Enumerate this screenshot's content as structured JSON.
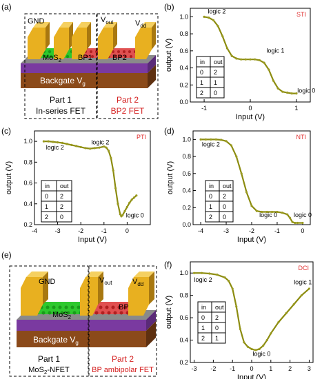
{
  "panels": {
    "a": {
      "tag": "(a)",
      "labels": {
        "gnd": "GND",
        "vout_main": "V",
        "vout_sub": "out",
        "vdd_main": "V",
        "vdd_sub": "dd",
        "mos2_main": "MoS",
        "mos2_sub": "2",
        "bp1": "BP1",
        "bp2": "BP2",
        "backgate_main": "Backgate V",
        "backgate_sub": "g"
      },
      "part1": {
        "title": "Part 1",
        "subtitle": "In-series FET"
      },
      "part2": {
        "title": "Part 2",
        "subtitle": "BP2 FET"
      }
    },
    "e": {
      "tag": "(e)",
      "labels": {
        "gnd": "GND",
        "vout_main": "V",
        "vout_sub": "out",
        "vdd_main": "V",
        "vdd_sub": "dd",
        "mos2_main": "MoS",
        "mos2_sub": "2",
        "bp": "BP",
        "backgate_main": "Backgate V",
        "backgate_sub": "g"
      },
      "part1": {
        "title": "Part 1",
        "subtitle_main": "MoS",
        "subtitle_sub": "2",
        "subtitle_rest": "-NFET"
      },
      "part2": {
        "title": "Part 2",
        "subtitle": "BP ambipolar FET"
      }
    }
  },
  "chart_data": [
    {
      "id": "b",
      "tag": "(b)",
      "type": "line",
      "name_label": "STI",
      "xlabel": "Input (V)",
      "ylabel": "output (V)",
      "xlim": [
        -1.3,
        1.3
      ],
      "ylim": [
        0.0,
        1.1
      ],
      "xticks": [
        -1,
        0,
        1
      ],
      "yticks": [
        0.0,
        0.2,
        0.4,
        0.6,
        0.8,
        1.0
      ],
      "series": [
        {
          "x": [
            -1.0,
            -0.9,
            -0.8,
            -0.7,
            -0.6,
            -0.5,
            -0.4,
            -0.3,
            -0.2,
            -0.1,
            0.0,
            0.1,
            0.2,
            0.3,
            0.4,
            0.5,
            0.6,
            0.7,
            0.8,
            0.9,
            1.0
          ],
          "y": [
            1.0,
            0.99,
            0.96,
            0.89,
            0.77,
            0.63,
            0.54,
            0.51,
            0.5,
            0.5,
            0.5,
            0.5,
            0.49,
            0.46,
            0.38,
            0.25,
            0.16,
            0.12,
            0.11,
            0.1,
            0.1
          ]
        }
      ],
      "annotations": [
        {
          "text": "logic 2",
          "x": -0.92,
          "y": 1.04
        },
        {
          "text": "logic 1",
          "x": 0.35,
          "y": 0.58
        },
        {
          "text": "logic 0",
          "x": 1.02,
          "y": 0.11
        }
      ],
      "truth_table": {
        "headers": [
          "in",
          "out"
        ],
        "rows": [
          [
            "0",
            "2"
          ],
          [
            "1",
            "1"
          ],
          [
            "2",
            "0"
          ]
        ]
      }
    },
    {
      "id": "c",
      "tag": "(c)",
      "type": "line",
      "name_label": "PTI",
      "xlabel": "Input (V)",
      "ylabel": "output (V)",
      "xlim": [
        -4,
        1
      ],
      "ylim": [
        0.2,
        1.1
      ],
      "xticks": [
        -4,
        -3,
        -2,
        -1,
        0
      ],
      "yticks": [
        0.2,
        0.4,
        0.6,
        0.8,
        1.0
      ],
      "series": [
        {
          "x": [
            -3.6,
            -3.4,
            -3.2,
            -3.0,
            -2.8,
            -2.6,
            -2.4,
            -2.2,
            -2.0,
            -1.8,
            -1.6,
            -1.4,
            -1.2,
            -1.0,
            -0.9,
            -0.8,
            -0.7,
            -0.6,
            -0.5,
            -0.4,
            -0.3,
            -0.25,
            -0.2,
            -0.1,
            0.0,
            0.1,
            0.2,
            0.3,
            0.4
          ],
          "y": [
            1.0,
            1.0,
            0.995,
            0.99,
            0.985,
            0.975,
            0.965,
            0.955,
            0.945,
            0.935,
            0.93,
            0.935,
            0.94,
            0.95,
            0.94,
            0.91,
            0.84,
            0.72,
            0.55,
            0.4,
            0.3,
            0.28,
            0.29,
            0.33,
            0.37,
            0.41,
            0.44,
            0.46,
            0.48
          ]
        }
      ],
      "annotations": [
        {
          "text": "logic 2",
          "x": -3.5,
          "y": 0.92
        },
        {
          "text": "logic 2",
          "x": -1.55,
          "y": 0.97
        },
        {
          "text": "logic 0",
          "x": -0.05,
          "y": 0.27
        }
      ],
      "truth_table": {
        "headers": [
          "in",
          "out"
        ],
        "rows": [
          [
            "0",
            "2"
          ],
          [
            "1",
            "2"
          ],
          [
            "2",
            "0"
          ]
        ]
      }
    },
    {
      "id": "d",
      "tag": "(d)",
      "type": "line",
      "name_label": "NTI",
      "xlabel": "Input (V)",
      "ylabel": "output (V)",
      "xlim": [
        -4.3,
        0.3
      ],
      "ylim": [
        0.0,
        1.1
      ],
      "xticks": [
        -4,
        -3,
        -2,
        -1,
        0
      ],
      "yticks": [
        0.0,
        0.2,
        0.4,
        0.6,
        0.8,
        1.0
      ],
      "series": [
        {
          "x": [
            -4.0,
            -3.8,
            -3.6,
            -3.4,
            -3.2,
            -3.0,
            -2.8,
            -2.6,
            -2.4,
            -2.2,
            -2.0,
            -1.8,
            -1.6,
            -1.4,
            -1.2,
            -1.0,
            -0.8,
            -0.6,
            -0.5,
            -0.4,
            -0.3,
            -0.2,
            0.0
          ],
          "y": [
            1.0,
            1.0,
            1.0,
            1.0,
            0.995,
            0.98,
            0.93,
            0.8,
            0.6,
            0.38,
            0.22,
            0.16,
            0.15,
            0.15,
            0.15,
            0.15,
            0.14,
            0.12,
            0.08,
            0.03,
            0.02,
            0.02,
            0.02
          ]
        }
      ],
      "annotations": [
        {
          "text": "logic 2",
          "x": -3.95,
          "y": 0.92
        },
        {
          "text": "logic 0",
          "x": -1.7,
          "y": 0.09
        },
        {
          "text": "logic 0",
          "x": -0.35,
          "y": 0.09
        }
      ],
      "truth_table": {
        "headers": [
          "in",
          "out"
        ],
        "rows": [
          [
            "0",
            "2"
          ],
          [
            "1",
            "0"
          ],
          [
            "2",
            "0"
          ]
        ]
      }
    },
    {
      "id": "f",
      "tag": "(f)",
      "type": "line",
      "name_label": "DCI",
      "xlabel": "Input (V)",
      "ylabel": "output (V)",
      "xlim": [
        -3.2,
        3.2
      ],
      "ylim": [
        0.2,
        1.1
      ],
      "xticks": [
        -3,
        -2,
        -1,
        0,
        1,
        2,
        3
      ],
      "yticks": [
        0.2,
        0.4,
        0.6,
        0.8,
        1.0
      ],
      "series": [
        {
          "x": [
            -3.0,
            -2.6,
            -2.2,
            -1.8,
            -1.4,
            -1.2,
            -1.0,
            -0.8,
            -0.6,
            -0.4,
            -0.2,
            0.0,
            0.2,
            0.4,
            0.6,
            0.8,
            1.0,
            1.4,
            1.8,
            2.2,
            2.6,
            3.0
          ],
          "y": [
            1.0,
            1.0,
            0.995,
            0.985,
            0.96,
            0.93,
            0.86,
            0.7,
            0.5,
            0.38,
            0.34,
            0.32,
            0.31,
            0.32,
            0.35,
            0.4,
            0.46,
            0.56,
            0.64,
            0.72,
            0.8,
            0.86
          ]
        }
      ],
      "annotations": [
        {
          "text": "logic 2",
          "x": -3.0,
          "y": 0.92
        },
        {
          "text": "logic 0",
          "x": 0.05,
          "y": 0.26
        },
        {
          "text": "logic 1",
          "x": 2.2,
          "y": 0.9
        }
      ],
      "truth_table": {
        "headers": [
          "in",
          "out"
        ],
        "rows": [
          [
            "0",
            "2"
          ],
          [
            "1",
            "0"
          ],
          [
            "2",
            "1"
          ]
        ]
      }
    }
  ],
  "colors": {
    "curve": "#8c8c10",
    "marker": "#9a9a20",
    "name_label": "#e03030",
    "part2_text": "#d42020",
    "gold": "#e8b020",
    "gold_dark": "#a87810",
    "mos2": "#2ec82e",
    "bp": "#e05050",
    "purple": "#7a3aa0",
    "brown": "#8b4a1a"
  }
}
